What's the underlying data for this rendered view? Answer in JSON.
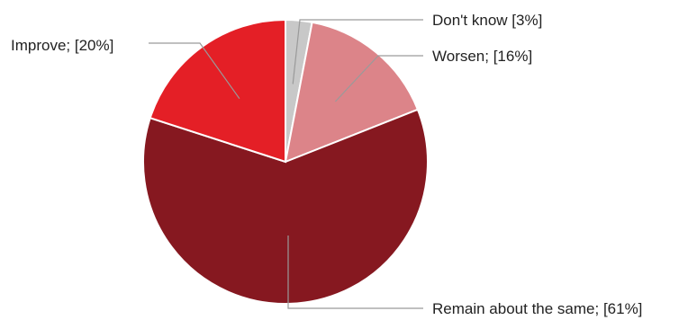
{
  "chart_data": {
    "type": "pie",
    "categories": [
      "Don't know",
      "Worsen",
      "Remain about the same",
      "Improve"
    ],
    "values": [
      3,
      16,
      61,
      20
    ],
    "labels": [
      "Don't know [3%]",
      "Worsen; [16%]",
      "Remain about the same; [61%]",
      "Improve; [20%]"
    ],
    "colors": [
      "#c8c8c8",
      "#dc8489",
      "#861820",
      "#e41f26"
    ],
    "start_angle_deg": 0,
    "direction": "clockwise",
    "title": "",
    "legend": "none"
  }
}
